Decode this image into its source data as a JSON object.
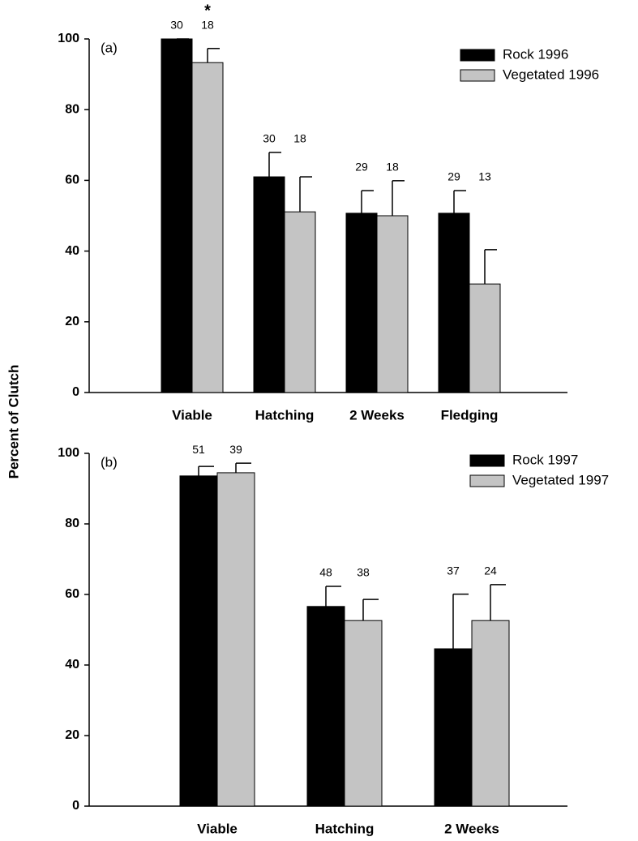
{
  "chart_data": [
    {
      "type": "bar",
      "title": "(a)",
      "ylabel": "Percent of Clutch",
      "categories": [
        "Viable",
        "Hatching",
        "2 Weeks",
        "Fledging"
      ],
      "series": [
        {
          "name": "Rock 1996",
          "color": "#000000",
          "values": [
            100,
            61,
            50.7,
            50.7
          ],
          "errors": [
            0,
            6.9,
            6.4,
            6.4
          ],
          "n": [
            30,
            30,
            29,
            29
          ]
        },
        {
          "name": "Vegetated 1996",
          "color": "#c4c4c4",
          "values": [
            93.3,
            51.1,
            50,
            30.7
          ],
          "errors": [
            4,
            9.9,
            9.9,
            9.7
          ],
          "n": [
            18,
            18,
            18,
            13
          ]
        }
      ],
      "annotations": [
        {
          "text": "*",
          "category": 0,
          "series": 1
        }
      ],
      "ylim": [
        0,
        100
      ],
      "yticks": [
        0,
        20,
        40,
        60,
        80,
        100
      ],
      "legend": "upper right"
    },
    {
      "type": "bar",
      "title": "(b)",
      "categories": [
        "Viable",
        "Hatching",
        "2 Weeks"
      ],
      "series": [
        {
          "name": "Rock 1997",
          "color": "#000000",
          "values": [
            93.6,
            56.6,
            44.6
          ],
          "errors": [
            2.7,
            5.7,
            15.5
          ],
          "n": [
            51,
            48,
            37
          ]
        },
        {
          "name": "Vegetated 1997",
          "color": "#c4c4c4",
          "values": [
            94.5,
            52.6,
            52.6
          ],
          "errors": [
            2.7,
            6,
            10.2
          ],
          "n": [
            39,
            38,
            24
          ]
        }
      ],
      "ylim": [
        0,
        100
      ],
      "yticks": [
        0,
        20,
        40,
        60,
        80,
        100
      ],
      "legend": "upper right"
    }
  ]
}
